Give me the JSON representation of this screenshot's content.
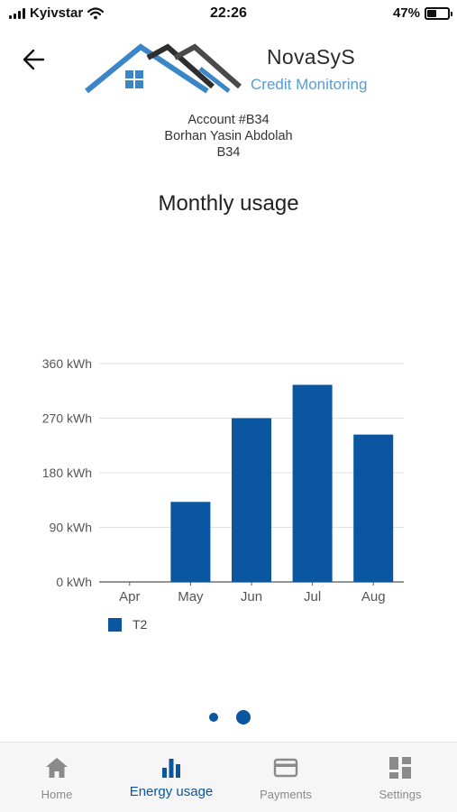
{
  "status": {
    "carrier": "Kyivstar",
    "time": "22:26",
    "battery": "47%",
    "battery_level": 0.47
  },
  "header": {
    "brand": "NovaSyS",
    "subtitle": "Credit Monitoring"
  },
  "account": {
    "line1": "Account #B34",
    "line2": "Borhan Yasin Abdolah",
    "line3": "B34"
  },
  "page_title": "Monthly usage",
  "chart_data": {
    "type": "bar",
    "title": "Monthly usage",
    "categories": [
      "Apr",
      "May",
      "Jun",
      "Jul",
      "Aug"
    ],
    "series": [
      {
        "name": "T2",
        "values": [
          0,
          132,
          270,
          325,
          243
        ],
        "color": "#0a56a0"
      }
    ],
    "ylim": [
      0,
      360
    ],
    "yticks": [
      "0 kWh",
      "90 kWh",
      "180 kWh",
      "270 kWh",
      "360 kWh"
    ],
    "ytick_values": [
      0,
      90,
      180,
      270,
      360
    ],
    "grid": true,
    "legend": "bottom-left"
  },
  "pager": {
    "pages": 2,
    "active": 2
  },
  "tabs": [
    {
      "label": "Home",
      "icon": "home-icon"
    },
    {
      "label": "Energy usage",
      "icon": "bar-chart-icon"
    },
    {
      "label": "Payments",
      "icon": "credit-card-icon"
    },
    {
      "label": "Settings",
      "icon": "dashboard-icon"
    }
  ],
  "colors": {
    "accent": "#0a56a0",
    "logo_blue": "#3b86c6",
    "logo_dark": "#3c3c3c"
  }
}
